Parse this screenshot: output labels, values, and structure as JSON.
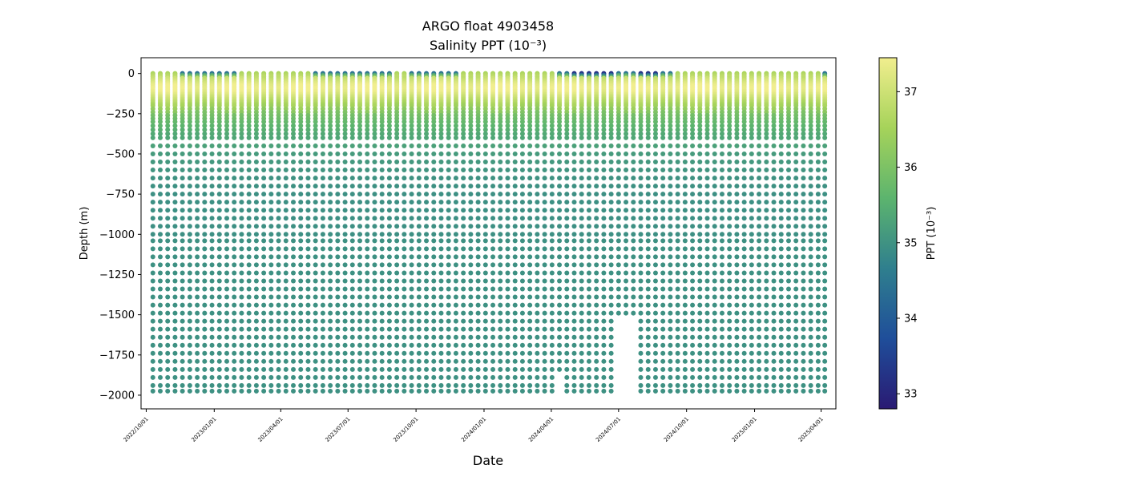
{
  "chart_data": {
    "type": "scatter",
    "title": "ARGO float 4903458",
    "subtitle": "Salinity PPT (10⁻³)",
    "xlabel": "Date",
    "ylabel": "Depth (m)",
    "x_type": "date",
    "xlim": [
      "2022-09-24",
      "2025-04-21"
    ],
    "ylim": [
      -2085,
      98
    ],
    "grid": false,
    "x_ticks": [
      "2022/10/01",
      "2023/01/01",
      "2023/04/01",
      "2023/07/01",
      "2023/10/01",
      "2024/01/01",
      "2024/04/01",
      "2024/07/01",
      "2024/10/01",
      "2025/01/01",
      "2025/04/01"
    ],
    "y_ticks": [
      0,
      -250,
      -500,
      -750,
      -1000,
      -1250,
      -1500,
      -1750,
      -2000
    ],
    "y_tick_labels": [
      "0",
      "−250",
      "−500",
      "−750",
      "−1000",
      "−1250",
      "−1500",
      "−1750",
      "−2000"
    ],
    "colorbar": {
      "label": "PPT (10⁻³)",
      "colormap": "viridis-to-yellow (dark blue → teal → green → pale yellow)",
      "range": [
        32.8,
        37.45
      ],
      "ticks": [
        33,
        34,
        35,
        36,
        37
      ],
      "colors": [
        "#2a1a73",
        "#1f4e9a",
        "#2f7f8e",
        "#5cb46e",
        "#a6d35a",
        "#f1ee8e"
      ]
    },
    "profile_dates": [
      "2022-10-10",
      "2022-10-20",
      "2022-10-30",
      "2022-11-09",
      "2022-11-19",
      "2022-11-29",
      "2022-12-09",
      "2022-12-19",
      "2022-12-29",
      "2023-01-08",
      "2023-01-18",
      "2023-01-28",
      "2023-02-07",
      "2023-02-17",
      "2023-02-27",
      "2023-03-09",
      "2023-03-19",
      "2023-03-29",
      "2023-04-08",
      "2023-04-18",
      "2023-04-28",
      "2023-05-08",
      "2023-05-18",
      "2023-05-28",
      "2023-06-07",
      "2023-06-17",
      "2023-06-27",
      "2023-07-07",
      "2023-07-17",
      "2023-07-27",
      "2023-08-06",
      "2023-08-16",
      "2023-08-26",
      "2023-09-05",
      "2023-09-15",
      "2023-09-25",
      "2023-10-05",
      "2023-10-15",
      "2023-10-25",
      "2023-11-04",
      "2023-11-14",
      "2023-11-24",
      "2023-12-04",
      "2023-12-14",
      "2023-12-24",
      "2024-01-03",
      "2024-01-13",
      "2024-01-23",
      "2024-02-02",
      "2024-02-12",
      "2024-02-22",
      "2024-03-03",
      "2024-03-13",
      "2024-03-23",
      "2024-04-02",
      "2024-04-12",
      "2024-04-22",
      "2024-05-02",
      "2024-05-12",
      "2024-05-22",
      "2024-06-01",
      "2024-06-11",
      "2024-06-21",
      "2024-07-01",
      "2024-07-11",
      "2024-07-21",
      "2024-07-31",
      "2024-08-10",
      "2024-08-20",
      "2024-08-30",
      "2024-09-09",
      "2024-09-19",
      "2024-09-29",
      "2024-10-09",
      "2024-10-19",
      "2024-10-29",
      "2024-11-08",
      "2024-11-18",
      "2024-11-28",
      "2024-12-08",
      "2024-12-18",
      "2024-12-28",
      "2025-01-07",
      "2025-01-17",
      "2025-01-27",
      "2025-02-06",
      "2025-02-16",
      "2025-02-26",
      "2025-03-08",
      "2025-03-18",
      "2025-03-28",
      "2025-04-06"
    ],
    "profile_depths": [
      0,
      -10,
      -20,
      -30,
      -40,
      -50,
      -60,
      -70,
      -80,
      -90,
      -100,
      -110,
      -120,
      -130,
      -140,
      -150,
      -160,
      -170,
      -180,
      -190,
      -200,
      -220,
      -240,
      -260,
      -280,
      -300,
      -325,
      -350,
      -375,
      -400,
      -450,
      -500,
      -550,
      -600,
      -650,
      -700,
      -750,
      -800,
      -850,
      -900,
      -950,
      -1000,
      -1040,
      -1090,
      -1140,
      -1190,
      -1240,
      -1290,
      -1340,
      -1390,
      -1440,
      -1490,
      -1540,
      -1590,
      -1640,
      -1690,
      -1740,
      -1790,
      -1840,
      -1890,
      -1940,
      -1975
    ],
    "salinity_by_depth": [
      36.6,
      36.7,
      36.8,
      36.9,
      37.0,
      37.1,
      37.2,
      37.3,
      37.35,
      37.4,
      37.4,
      37.35,
      37.3,
      37.2,
      37.1,
      37.0,
      36.9,
      36.8,
      36.7,
      36.6,
      36.5,
      36.3,
      36.1,
      35.9,
      35.8,
      35.7,
      35.6,
      35.5,
      35.4,
      35.35,
      35.25,
      35.15,
      35.1,
      35.05,
      35.0,
      34.98,
      34.96,
      34.95,
      34.95,
      34.95,
      34.96,
      34.96,
      34.97,
      34.97,
      34.97,
      34.97,
      34.97,
      34.97,
      34.97,
      34.97,
      34.97,
      34.97,
      34.97,
      34.97,
      34.97,
      34.97,
      34.97,
      34.97,
      34.97,
      34.97,
      34.97,
      34.97
    ],
    "fresh_surface_profiles": [
      4,
      5,
      6,
      7,
      8,
      9,
      10,
      11,
      22,
      23,
      24,
      25,
      26,
      27,
      28,
      29,
      30,
      31,
      32,
      35,
      36,
      37,
      38,
      39,
      40,
      41,
      55,
      56,
      57,
      58,
      59,
      60,
      61,
      62,
      63,
      64,
      65,
      66,
      67,
      68,
      69,
      70,
      91
    ],
    "freshest_surface_profiles": [
      57,
      58,
      59,
      60,
      61,
      62,
      66,
      67,
      68
    ],
    "gap_below_1500m_profiles": [
      63,
      64,
      65
    ],
    "gap_below_1850m_profiles": [
      55
    ]
  }
}
